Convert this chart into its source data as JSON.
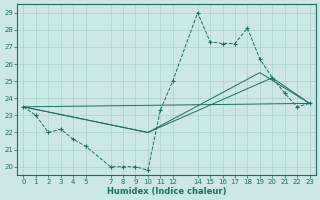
{
  "xlabel": "Humidex (Indice chaleur)",
  "xlim": [
    -0.5,
    23.5
  ],
  "ylim": [
    19.5,
    29.5
  ],
  "yticks": [
    20,
    21,
    22,
    23,
    24,
    25,
    26,
    27,
    28,
    29
  ],
  "xticks": [
    0,
    1,
    2,
    3,
    4,
    5,
    7,
    8,
    9,
    10,
    11,
    12,
    14,
    15,
    16,
    17,
    18,
    19,
    20,
    21,
    22,
    23
  ],
  "background_color": "#cce8e6",
  "grid_color": "#aacfcc",
  "line_color": "#1e6b65",
  "dashed_line": {
    "x": [
      0,
      1,
      2,
      3,
      4,
      5,
      7,
      8,
      9,
      10,
      11,
      12,
      14,
      15,
      16,
      17,
      18,
      19,
      20,
      21,
      22,
      23
    ],
    "y": [
      23.5,
      23.0,
      22.0,
      22.2,
      21.6,
      21.2,
      20.0,
      20.0,
      20.0,
      19.8,
      23.3,
      25.0,
      29.0,
      27.3,
      27.2,
      27.2,
      28.1,
      26.3,
      25.2,
      24.3,
      23.5,
      23.7
    ]
  },
  "solid_lines": [
    {
      "x": [
        0,
        23
      ],
      "y": [
        23.5,
        23.7
      ]
    },
    {
      "x": [
        0,
        10,
        20,
        23
      ],
      "y": [
        23.5,
        22.0,
        25.2,
        23.7
      ]
    },
    {
      "x": [
        0,
        10,
        19,
        23
      ],
      "y": [
        23.5,
        22.0,
        25.5,
        23.7
      ]
    }
  ]
}
